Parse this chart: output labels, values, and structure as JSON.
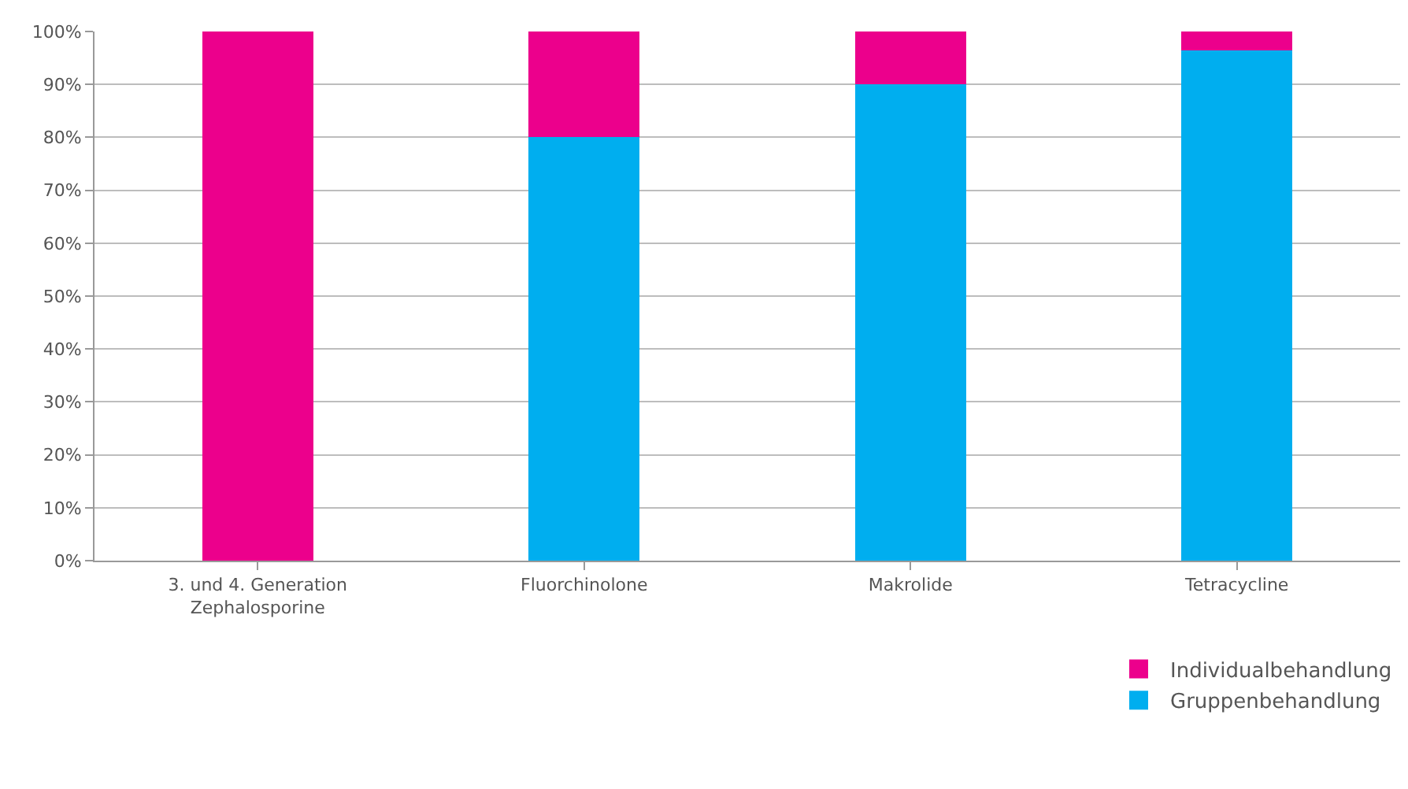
{
  "chart_data": {
    "type": "bar",
    "stacked": true,
    "categories": [
      "3. und 4. Generation\nZephalosporine",
      "Fluorchinolone",
      "Makrolide",
      "Tetracycline"
    ],
    "series": [
      {
        "name": "Gruppenbehandlung",
        "color": "#00aeef",
        "values": [
          0,
          80,
          90,
          96.5
        ]
      },
      {
        "name": "Individualbehandlung",
        "color": "#ec008c",
        "values": [
          100,
          20,
          10,
          3.5
        ]
      }
    ],
    "ylim": [
      0,
      100
    ],
    "yticks": [
      {
        "value": 0,
        "label": "0%"
      },
      {
        "value": 10,
        "label": "10%"
      },
      {
        "value": 20,
        "label": "20%"
      },
      {
        "value": 30,
        "label": "30%"
      },
      {
        "value": 40,
        "label": "40%"
      },
      {
        "value": 50,
        "label": "50%"
      },
      {
        "value": 60,
        "label": "60%"
      },
      {
        "value": 70,
        "label": "70%"
      },
      {
        "value": 80,
        "label": "80%"
      },
      {
        "value": 90,
        "label": "90%"
      },
      {
        "value": 100,
        "label": "100%"
      }
    ],
    "grid": "y",
    "legend": "bottom right"
  }
}
